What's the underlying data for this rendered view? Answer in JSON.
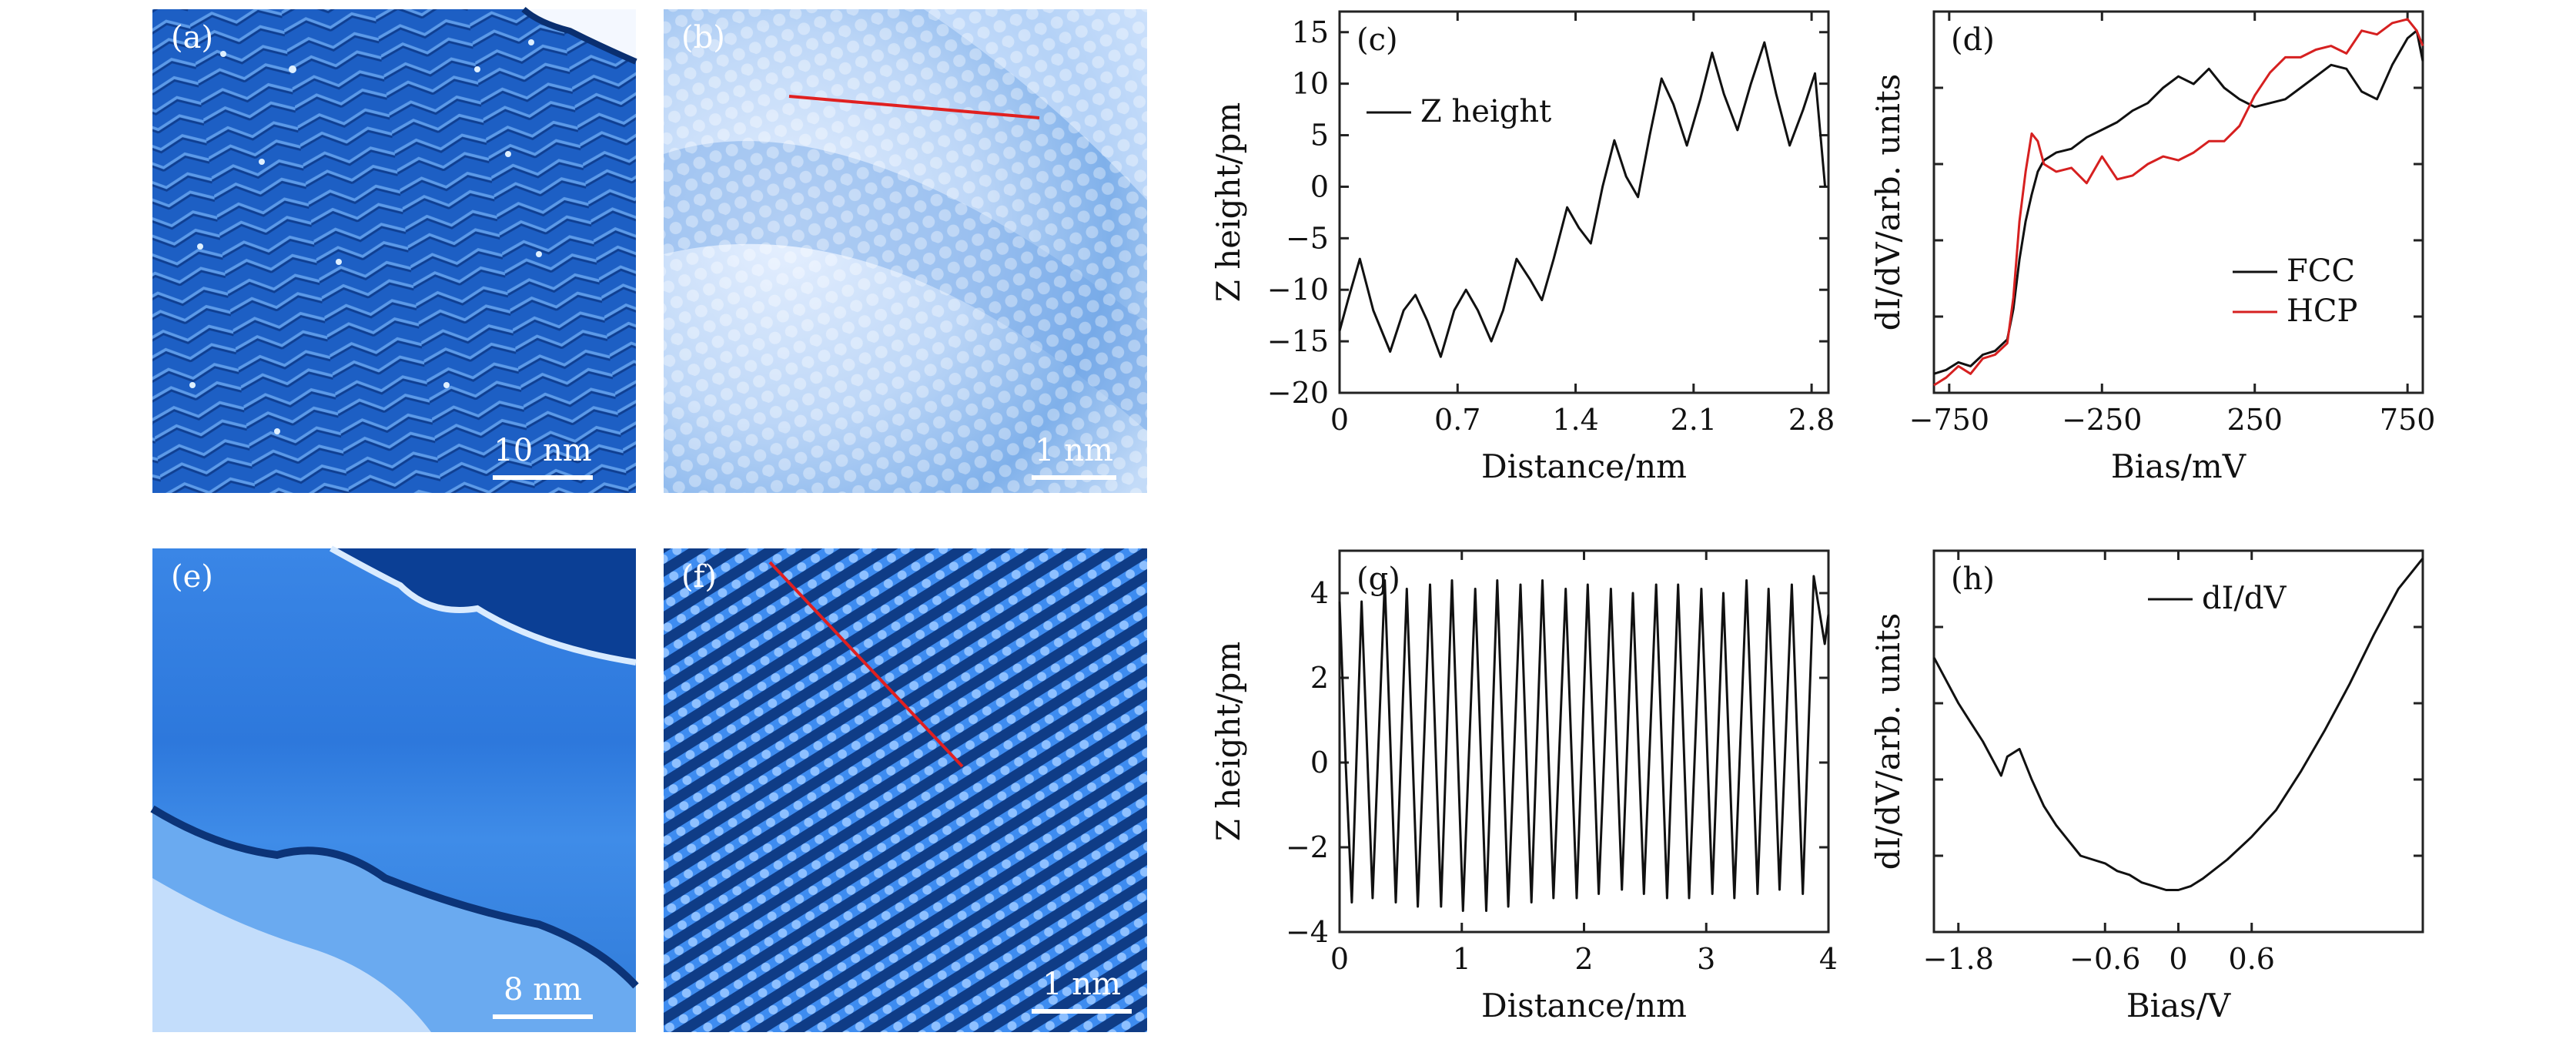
{
  "panels": {
    "a": {
      "label": "(a)",
      "scalebar": "10 nm"
    },
    "b": {
      "label": "(b)",
      "scalebar": "1 nm"
    },
    "e": {
      "label": "(e)",
      "scalebar": "8 nm"
    },
    "f": {
      "label": "(f)",
      "scalebar": "1 nm"
    }
  },
  "colors": {
    "stm_blue_dark": "#0b3b86",
    "stm_blue": "#2a6fd0",
    "stm_blue_light": "#9cc3f2",
    "line_profile": "#e02020",
    "series_black": "#111111",
    "series_red": "#d62020"
  },
  "chart_data": [
    {
      "id": "c",
      "label": "(c)",
      "type": "line",
      "xlabel": "Distance/nm",
      "ylabel": "Z height/pm",
      "xlim": [
        0,
        2.9
      ],
      "ylim": [
        -20,
        17
      ],
      "xticks": [
        "0",
        "0.7",
        "1.4",
        "2.1",
        "2.8"
      ],
      "xtick_values": [
        0,
        0.7,
        1.4,
        2.1,
        2.8
      ],
      "yticks": [
        "−20",
        "−15",
        "−10",
        "−5",
        "0",
        "5",
        "10",
        "15"
      ],
      "ytick_values": [
        -20,
        -15,
        -10,
        -5,
        0,
        5,
        10,
        15
      ],
      "legend": [
        "Z height"
      ],
      "series": [
        {
          "name": "Z height",
          "color": "#111111",
          "x": [
            0,
            0.05,
            0.12,
            0.2,
            0.3,
            0.38,
            0.45,
            0.52,
            0.6,
            0.68,
            0.75,
            0.82,
            0.9,
            0.97,
            1.05,
            1.13,
            1.2,
            1.27,
            1.35,
            1.42,
            1.49,
            1.56,
            1.63,
            1.7,
            1.77,
            1.84,
            1.91,
            1.98,
            2.06,
            2.14,
            2.21,
            2.28,
            2.36,
            2.44,
            2.52,
            2.59,
            2.67,
            2.75,
            2.82,
            2.88
          ],
          "y": [
            -14,
            -11,
            -7,
            -12,
            -16,
            -12,
            -10.5,
            -13,
            -16.5,
            -12,
            -10,
            -12,
            -15,
            -12,
            -7,
            -9,
            -11,
            -7,
            -2,
            -4,
            -5.5,
            0,
            4.5,
            1,
            -1,
            5,
            10.5,
            8,
            4,
            8.5,
            13,
            9,
            5.5,
            10,
            14,
            9,
            4,
            7.5,
            11,
            0
          ]
        }
      ]
    },
    {
      "id": "d",
      "label": "(d)",
      "type": "line",
      "xlabel": "Bias/mV",
      "ylabel": "dI/dV/arb. units",
      "xlim": [
        -800,
        800
      ],
      "ylim": [
        0,
        1
      ],
      "xticks": [
        "−750",
        "−250",
        "250",
        "750"
      ],
      "xtick_values": [
        -750,
        -250,
        250,
        750
      ],
      "yticks": [],
      "legend": [
        "FCC",
        "HCP"
      ],
      "series": [
        {
          "name": "FCC",
          "color": "#111111",
          "x": [
            -800,
            -760,
            -720,
            -680,
            -640,
            -600,
            -560,
            -540,
            -520,
            -500,
            -480,
            -460,
            -440,
            -400,
            -350,
            -300,
            -250,
            -200,
            -150,
            -100,
            -50,
            0,
            50,
            100,
            150,
            200,
            250,
            300,
            350,
            400,
            450,
            500,
            550,
            600,
            650,
            700,
            750,
            780,
            800
          ],
          "y": [
            0.05,
            0.06,
            0.08,
            0.07,
            0.1,
            0.11,
            0.14,
            0.22,
            0.35,
            0.45,
            0.52,
            0.58,
            0.61,
            0.63,
            0.64,
            0.67,
            0.69,
            0.71,
            0.74,
            0.76,
            0.8,
            0.83,
            0.81,
            0.85,
            0.8,
            0.77,
            0.75,
            0.76,
            0.77,
            0.8,
            0.83,
            0.86,
            0.85,
            0.79,
            0.77,
            0.86,
            0.93,
            0.95,
            0.87
          ]
        },
        {
          "name": "HCP",
          "color": "#d62020",
          "x": [
            -800,
            -760,
            -720,
            -680,
            -640,
            -600,
            -560,
            -540,
            -520,
            -500,
            -480,
            -460,
            -440,
            -400,
            -350,
            -300,
            -250,
            -200,
            -150,
            -100,
            -50,
            0,
            50,
            100,
            150,
            200,
            250,
            300,
            350,
            400,
            450,
            500,
            550,
            600,
            650,
            700,
            750,
            780,
            800
          ],
          "y": [
            0.02,
            0.04,
            0.07,
            0.05,
            0.09,
            0.1,
            0.13,
            0.25,
            0.45,
            0.58,
            0.68,
            0.66,
            0.6,
            0.58,
            0.59,
            0.55,
            0.62,
            0.56,
            0.57,
            0.6,
            0.62,
            0.61,
            0.63,
            0.66,
            0.66,
            0.7,
            0.78,
            0.84,
            0.88,
            0.88,
            0.9,
            0.91,
            0.89,
            0.95,
            0.94,
            0.97,
            0.98,
            0.95,
            0.91
          ]
        }
      ]
    },
    {
      "id": "g",
      "label": "(g)",
      "type": "line",
      "xlabel": "Distance/nm",
      "ylabel": "Z height/pm",
      "xlim": [
        0,
        4
      ],
      "ylim": [
        -4,
        5
      ],
      "xticks": [
        "0",
        "1",
        "2",
        "3",
        "4"
      ],
      "xtick_values": [
        0,
        1,
        2,
        3,
        4
      ],
      "yticks": [
        "−4",
        "−2",
        "0",
        "2",
        "4"
      ],
      "ytick_values": [
        -4,
        -2,
        0,
        2,
        4
      ],
      "series": [
        {
          "name": "Z height",
          "color": "#111111",
          "x": [
            0,
            0.05,
            0.1,
            0.18,
            0.27,
            0.37,
            0.46,
            0.55,
            0.64,
            0.74,
            0.83,
            0.92,
            1.01,
            1.11,
            1.2,
            1.29,
            1.38,
            1.48,
            1.57,
            1.66,
            1.75,
            1.85,
            1.94,
            2.03,
            2.12,
            2.22,
            2.31,
            2.4,
            2.49,
            2.59,
            2.68,
            2.77,
            2.86,
            2.96,
            3.05,
            3.14,
            3.23,
            3.33,
            3.42,
            3.51,
            3.6,
            3.7,
            3.79,
            3.88,
            3.97,
            4.0
          ],
          "y": [
            3.8,
            0,
            -3.3,
            3.8,
            -3.2,
            4.3,
            -3.3,
            4.1,
            -3.4,
            4.2,
            -3.4,
            4.3,
            -3.5,
            4.1,
            -3.5,
            4.3,
            -3.4,
            4.2,
            -3.3,
            4.3,
            -3.2,
            4.1,
            -3.2,
            4.2,
            -3.1,
            4.1,
            -3.0,
            4.0,
            -3.1,
            4.2,
            -3.2,
            4.2,
            -3.2,
            4.1,
            -3.1,
            4.0,
            -3.2,
            4.3,
            -3.1,
            4.1,
            -3.0,
            4.2,
            -3.1,
            4.4,
            2.8,
            3.5
          ]
        }
      ]
    },
    {
      "id": "h",
      "label": "(h)",
      "type": "line",
      "xlabel": "Bias/V",
      "ylabel": "dI/dV/arb. units",
      "xlim": [
        -2.0,
        2.0
      ],
      "ylim": [
        0,
        1
      ],
      "xticks": [
        "−1.8",
        "−0.6",
        "0",
        "0.6"
      ],
      "xtick_values": [
        -1.8,
        -0.6,
        0,
        0.6
      ],
      "yticks": [],
      "legend": [
        "dI/dV"
      ],
      "series": [
        {
          "name": "dI/dV",
          "color": "#111111",
          "x": [
            -2.0,
            -1.9,
            -1.8,
            -1.7,
            -1.6,
            -1.5,
            -1.45,
            -1.4,
            -1.3,
            -1.2,
            -1.1,
            -1.0,
            -0.9,
            -0.8,
            -0.7,
            -0.6,
            -0.5,
            -0.4,
            -0.3,
            -0.2,
            -0.1,
            0.0,
            0.1,
            0.2,
            0.4,
            0.6,
            0.8,
            1.0,
            1.2,
            1.4,
            1.6,
            1.8,
            2.0
          ],
          "y": [
            0.72,
            0.66,
            0.6,
            0.55,
            0.5,
            0.44,
            0.41,
            0.46,
            0.48,
            0.4,
            0.33,
            0.28,
            0.24,
            0.2,
            0.19,
            0.18,
            0.16,
            0.15,
            0.13,
            0.12,
            0.11,
            0.11,
            0.12,
            0.14,
            0.19,
            0.25,
            0.32,
            0.42,
            0.53,
            0.65,
            0.78,
            0.9,
            0.98
          ]
        }
      ]
    }
  ]
}
